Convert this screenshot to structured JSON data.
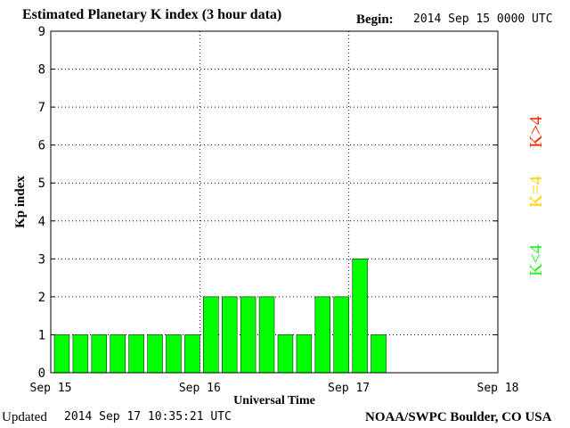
{
  "header": {
    "title": "Estimated Planetary K index (3 hour data)",
    "begin_label": "Begin:",
    "begin_value": "2014 Sep 15 0000 UTC"
  },
  "footer": {
    "updated_label": "Updated",
    "updated_value": "2014 Sep 17 10:35:21 UTC",
    "credit": "NOAA/SWPC Boulder, CO USA"
  },
  "legend": {
    "items": [
      {
        "label": "K>4",
        "color": "#ff2a00"
      },
      {
        "label": "K=4",
        "color": "#ffd200"
      },
      {
        "label": "K<4",
        "color": "#22ee22"
      }
    ]
  },
  "colors": {
    "bar": "#00ff00",
    "bar_stroke": "#000000"
  },
  "chart_data": {
    "type": "bar",
    "title": "Estimated Planetary K index (3 hour data)",
    "xlabel": "Universal Time",
    "ylabel": "Kp index",
    "ylim": [
      0,
      9
    ],
    "yticks": [
      0,
      1,
      2,
      3,
      4,
      5,
      6,
      7,
      8,
      9
    ],
    "xlim_days": [
      0,
      3
    ],
    "xticks": [
      "Sep 15",
      "Sep 16",
      "Sep 17",
      "Sep 18"
    ],
    "interval_hours": 3,
    "grid": true,
    "values": [
      1,
      1,
      1,
      1,
      1,
      1,
      1,
      1,
      2,
      2,
      2,
      2,
      1,
      1,
      2,
      2,
      3,
      1
    ]
  }
}
